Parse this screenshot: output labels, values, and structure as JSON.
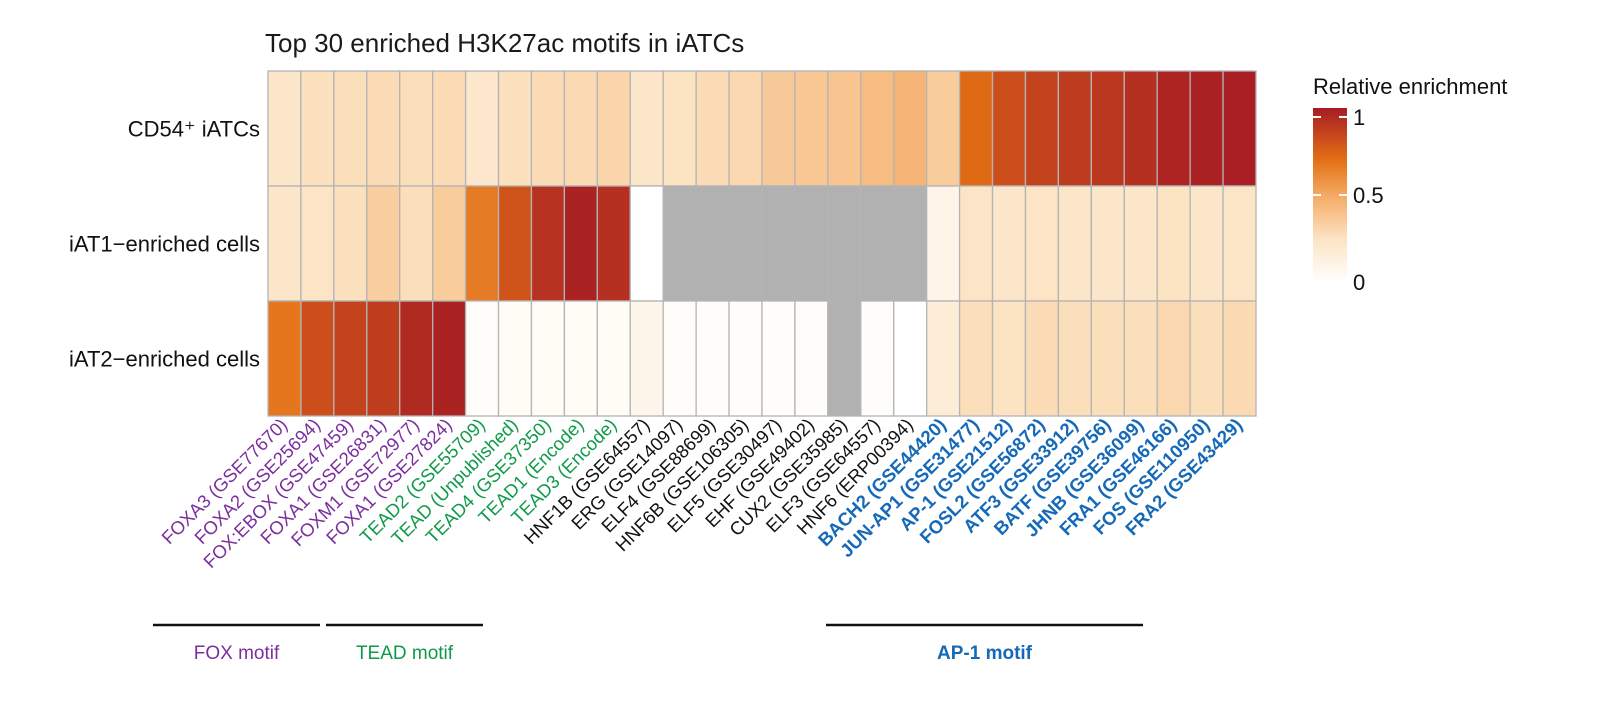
{
  "chart_data": {
    "type": "heatmap",
    "title": "Top 30 enriched H3K27ac motifs in iATCs",
    "rows": [
      "CD54⁺ iATCs",
      "iAT1−enriched cells",
      "iAT2−enriched cells"
    ],
    "columns": [
      {
        "label": "FOXA3 (GSE77670)",
        "group": "FOX"
      },
      {
        "label": "FOXA2 (GSE25694)",
        "group": "FOX"
      },
      {
        "label": "FOX:EBOX (GSE47459)",
        "group": "FOX"
      },
      {
        "label": "FOXA1 (GSE26831)",
        "group": "FOX"
      },
      {
        "label": "FOXM1 (GSE72977)",
        "group": "FOX"
      },
      {
        "label": "FOXA1 (GSE27824)",
        "group": "FOX"
      },
      {
        "label": "TEAD2 (GSE55709)",
        "group": "TEAD"
      },
      {
        "label": "TEAD (Unpublished)",
        "group": "TEAD"
      },
      {
        "label": "TEAD4 (GSE37350)",
        "group": "TEAD"
      },
      {
        "label": "TEAD1 (Encode)",
        "group": "TEAD"
      },
      {
        "label": "TEAD3 (Encode)",
        "group": "TEAD"
      },
      {
        "label": "HNF1B (GSE64557)",
        "group": "other"
      },
      {
        "label": "ERG (GSE14097)",
        "group": "other"
      },
      {
        "label": "ELF4 (GSE88699)",
        "group": "other"
      },
      {
        "label": "HNF6B (GSE106305)",
        "group": "other"
      },
      {
        "label": "ELF5 (GSE30497)",
        "group": "other"
      },
      {
        "label": "EHF (GSE49402)",
        "group": "other"
      },
      {
        "label": "CUX2 (GSE35985)",
        "group": "other"
      },
      {
        "label": "ELF3 (GSE64557)",
        "group": "other"
      },
      {
        "label": "HNF6 (ERP00394)",
        "group": "other"
      },
      {
        "label": "BACH2 (GSE44420)",
        "group": "AP1"
      },
      {
        "label": "JUN-AP1 (GSE31477)",
        "group": "AP1"
      },
      {
        "label": "AP-1 (GSE21512)",
        "group": "AP1"
      },
      {
        "label": "FOSL2 (GSE56872)",
        "group": "AP1"
      },
      {
        "label": "ATF3 (GSE33912)",
        "group": "AP1"
      },
      {
        "label": "BATF (GSE39756)",
        "group": "AP1"
      },
      {
        "label": "JHNB (GSE36099)",
        "group": "AP1"
      },
      {
        "label": "FRA1 (GSE46166)",
        "group": "AP1"
      },
      {
        "label": "FOS (GSE110950)",
        "group": "AP1"
      },
      {
        "label": "FRA2 (GSE43429)",
        "group": "AP1"
      }
    ],
    "values": [
      [
        0.22,
        0.26,
        0.27,
        0.28,
        0.27,
        0.28,
        0.21,
        0.26,
        0.28,
        0.29,
        0.31,
        0.22,
        0.25,
        0.28,
        0.3,
        0.36,
        0.37,
        0.38,
        0.42,
        0.45,
        0.35,
        0.72,
        0.82,
        0.86,
        0.89,
        0.9,
        0.93,
        0.97,
        0.98,
        0.99
      ],
      [
        0.22,
        0.24,
        0.26,
        0.34,
        0.27,
        0.35,
        0.66,
        0.8,
        0.92,
        0.98,
        0.93,
        0.0,
        null,
        null,
        null,
        null,
        null,
        null,
        null,
        null,
        0.1,
        0.23,
        0.22,
        0.24,
        0.22,
        0.22,
        0.22,
        0.25,
        0.22,
        0.23
      ],
      [
        0.68,
        0.82,
        0.86,
        0.88,
        0.95,
        0.98,
        0.02,
        0.04,
        0.04,
        0.04,
        0.04,
        0.08,
        0.02,
        0.02,
        0.02,
        0.02,
        0.02,
        null,
        0.02,
        0.0,
        0.17,
        0.27,
        0.25,
        0.28,
        0.27,
        0.27,
        0.27,
        0.3,
        0.27,
        0.29
      ]
    ],
    "missing_color": "#b1b1b1",
    "colorscale": [
      {
        "value": 0,
        "color": "#ffffff"
      },
      {
        "value": 0.25,
        "color": "#fce3c2"
      },
      {
        "value": 0.5,
        "color": "#f4a963"
      },
      {
        "value": 0.7,
        "color": "#e37015"
      },
      {
        "value": 1,
        "color": "#a71c24"
      }
    ],
    "legend": {
      "title": "Relative enrichment",
      "ticks": [
        {
          "value": 1,
          "label": "1"
        },
        {
          "value": 0.5,
          "label": "0.5"
        },
        {
          "value": 0,
          "label": "0"
        }
      ],
      "placement": "right"
    },
    "groups": [
      {
        "key": "FOX",
        "label": "FOX motif",
        "color": "#7b2f9e",
        "bold": false,
        "first_col": 0,
        "last_col": 5
      },
      {
        "key": "TEAD",
        "label": "TEAD motif",
        "color": "#0f9a4a",
        "bold": false,
        "first_col": 6,
        "last_col": 10
      },
      {
        "key": "other",
        "label": "",
        "color": "#111111",
        "bold": false
      },
      {
        "key": "AP1",
        "label": "AP-1 motif",
        "color": "#1469b8",
        "bold": true,
        "first_col": 20,
        "last_col": 29
      }
    ]
  }
}
